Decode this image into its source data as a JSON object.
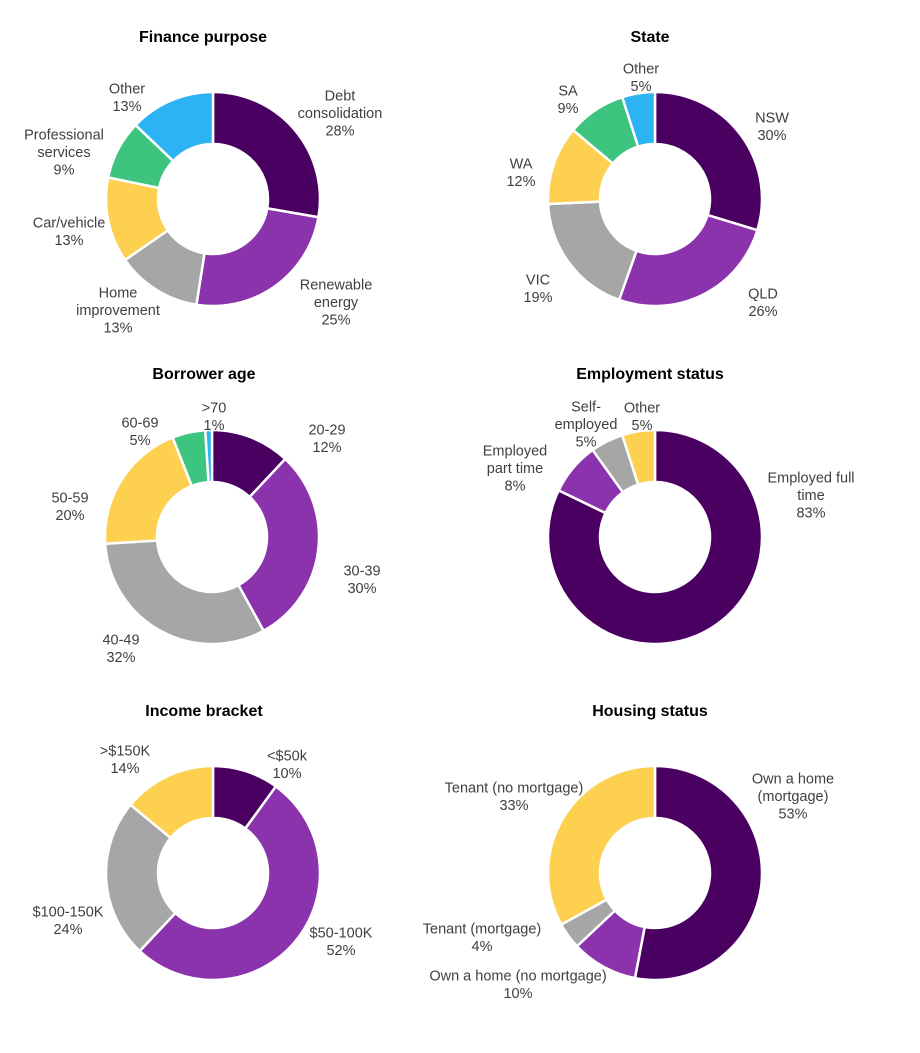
{
  "chart_data": [
    {
      "type": "pie",
      "donut": true,
      "title": "Finance purpose",
      "slices": [
        {
          "label": [
            "Debt",
            "consolidation"
          ],
          "value": 28,
          "value_label": "28%",
          "color": "#4a0060"
        },
        {
          "label": [
            "Renewable",
            "energy"
          ],
          "value": 25,
          "value_label": "25%",
          "color": "#8a33ad"
        },
        {
          "label": [
            "Home",
            "improvement"
          ],
          "value": 13,
          "value_label": "13%",
          "color": "#a6a6a6"
        },
        {
          "label": [
            "Car/vehicle"
          ],
          "value": 13,
          "value_label": "13%",
          "color": "#fdd04f"
        },
        {
          "label": [
            "Professional",
            "services"
          ],
          "value": 9,
          "value_label": "9%",
          "color": "#3dc47e"
        },
        {
          "label": [
            "Other"
          ],
          "value": 13,
          "value_label": "13%",
          "color": "#2bb3f3"
        }
      ]
    },
    {
      "type": "pie",
      "donut": true,
      "title": "State",
      "slices": [
        {
          "label": [
            "NSW"
          ],
          "value": 30,
          "value_label": "30%",
          "color": "#4a0060"
        },
        {
          "label": [
            "QLD"
          ],
          "value": 26,
          "value_label": "26%",
          "color": "#8a33ad"
        },
        {
          "label": [
            "VIC"
          ],
          "value": 19,
          "value_label": "19%",
          "color": "#a6a6a6"
        },
        {
          "label": [
            "WA"
          ],
          "value": 12,
          "value_label": "12%",
          "color": "#fdd04f"
        },
        {
          "label": [
            "SA"
          ],
          "value": 9,
          "value_label": "9%",
          "color": "#3dc47e"
        },
        {
          "label": [
            "Other"
          ],
          "value": 5,
          "value_label": "5%",
          "color": "#2bb3f3"
        }
      ]
    },
    {
      "type": "pie",
      "donut": true,
      "title": "Borrower age",
      "slices": [
        {
          "label": [
            "20-29"
          ],
          "value": 12,
          "value_label": "12%",
          "color": "#4a0060"
        },
        {
          "label": [
            "30-39"
          ],
          "value": 30,
          "value_label": "30%",
          "color": "#8a33ad"
        },
        {
          "label": [
            "40-49"
          ],
          "value": 32,
          "value_label": "32%",
          "color": "#a6a6a6"
        },
        {
          "label": [
            "50-59"
          ],
          "value": 20,
          "value_label": "20%",
          "color": "#fdd04f"
        },
        {
          "label": [
            "60-69"
          ],
          "value": 5,
          "value_label": "5%",
          "color": "#3dc47e"
        },
        {
          "label": [
            ">70"
          ],
          "value": 1,
          "value_label": "1%",
          "color": "#2bb3f3"
        }
      ]
    },
    {
      "type": "pie",
      "donut": true,
      "title": "Employment status",
      "slices": [
        {
          "label": [
            "Employed full",
            "time"
          ],
          "value": 83,
          "value_label": "83%",
          "color": "#4a0060"
        },
        {
          "label": [
            "Employed",
            "part time"
          ],
          "value": 8,
          "value_label": "8%",
          "color": "#8a33ad"
        },
        {
          "label": [
            "Self-",
            "employed"
          ],
          "value": 5,
          "value_label": "5%",
          "color": "#a6a6a6"
        },
        {
          "label": [
            "Other"
          ],
          "value": 5,
          "value_label": "5%",
          "color": "#fdd04f"
        }
      ]
    },
    {
      "type": "pie",
      "donut": true,
      "title": "Income bracket",
      "slices": [
        {
          "label": [
            "<$50k"
          ],
          "value": 10,
          "value_label": "10%",
          "color": "#4a0060"
        },
        {
          "label": [
            "$50-100K"
          ],
          "value": 52,
          "value_label": "52%",
          "color": "#8a33ad"
        },
        {
          "label": [
            "$100-150K"
          ],
          "value": 24,
          "value_label": "24%",
          "color": "#a6a6a6"
        },
        {
          "label": [
            ">$150K"
          ],
          "value": 14,
          "value_label": "14%",
          "color": "#fdd04f"
        }
      ]
    },
    {
      "type": "pie",
      "donut": true,
      "title": "Housing status",
      "slices": [
        {
          "label": [
            "Own a home",
            "(mortgage)"
          ],
          "value": 53,
          "value_label": "53%",
          "color": "#4a0060"
        },
        {
          "label": [
            "Own a home (no mortgage)"
          ],
          "value": 10,
          "value_label": "10%",
          "color": "#8a33ad"
        },
        {
          "label": [
            "Tenant (mortgage)"
          ],
          "value": 4,
          "value_label": "4%",
          "color": "#a6a6a6"
        },
        {
          "label": [
            "Tenant (no mortgage)"
          ],
          "value": 33,
          "value_label": "33%",
          "color": "#fdd04f"
        }
      ]
    }
  ]
}
